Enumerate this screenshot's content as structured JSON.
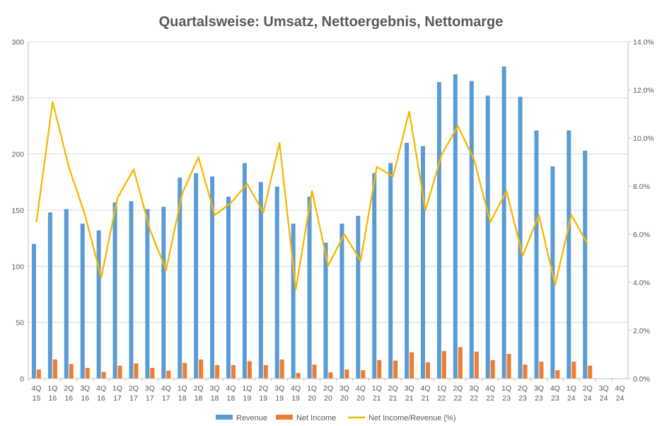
{
  "chart_data": {
    "type": "bar",
    "title": "Quartalsweise: Umsatz, Nettoergebnis, Nettomarge",
    "categories": [
      [
        "4Q",
        "15"
      ],
      [
        "1Q",
        "16"
      ],
      [
        "2Q",
        "16"
      ],
      [
        "3Q",
        "16"
      ],
      [
        "4Q",
        "16"
      ],
      [
        "1Q",
        "17"
      ],
      [
        "2Q",
        "17"
      ],
      [
        "3Q",
        "17"
      ],
      [
        "4Q",
        "17"
      ],
      [
        "1Q",
        "18"
      ],
      [
        "2Q",
        "18"
      ],
      [
        "3Q",
        "18"
      ],
      [
        "4Q",
        "18"
      ],
      [
        "1Q",
        "19"
      ],
      [
        "2Q",
        "19"
      ],
      [
        "3Q",
        "19"
      ],
      [
        "4Q",
        "19"
      ],
      [
        "1Q",
        "20"
      ],
      [
        "2Q",
        "20"
      ],
      [
        "3Q",
        "20"
      ],
      [
        "4Q",
        "20"
      ],
      [
        "1Q",
        "21"
      ],
      [
        "2Q",
        "21"
      ],
      [
        "3Q",
        "21"
      ],
      [
        "4Q",
        "21"
      ],
      [
        "1Q",
        "22"
      ],
      [
        "2Q",
        "22"
      ],
      [
        "3Q",
        "22"
      ],
      [
        "4Q",
        "22"
      ],
      [
        "1Q",
        "23"
      ],
      [
        "2Q",
        "23"
      ],
      [
        "3Q",
        "23"
      ],
      [
        "4Q",
        "23"
      ],
      [
        "1Q",
        "24"
      ],
      [
        "2Q",
        "24"
      ],
      [
        "3Q",
        "24"
      ],
      [
        "4Q",
        "24"
      ]
    ],
    "series": [
      {
        "name": "Revenue",
        "kind": "bar",
        "axis": "left",
        "color": "#5B9BD5",
        "values": [
          120,
          148,
          151,
          138,
          132,
          157,
          158,
          151,
          153,
          179,
          183,
          180,
          162,
          192,
          175,
          171,
          138,
          162,
          121,
          138,
          145,
          183,
          192,
          210,
          207,
          264,
          271,
          265,
          252,
          278,
          251,
          221,
          189,
          221,
          203,
          null,
          null
        ]
      },
      {
        "name": "Net Income",
        "kind": "bar",
        "axis": "left",
        "color": "#ED7D31",
        "values": [
          8,
          17,
          13,
          9.5,
          6,
          11.5,
          13.5,
          9.5,
          7,
          14,
          17,
          12,
          12,
          15.5,
          12,
          17,
          5,
          12.5,
          5.5,
          8,
          7.5,
          16.5,
          16,
          23.5,
          14.5,
          24.5,
          28,
          24,
          16.5,
          22,
          12.5,
          15,
          7.5,
          15,
          11.5,
          null,
          null
        ]
      },
      {
        "name": "Net Income/Revenue (%)",
        "kind": "line",
        "axis": "right",
        "color": "#F5B800",
        "values": [
          6.5,
          11.5,
          8.8,
          6.8,
          4.2,
          7.5,
          8.7,
          6.2,
          4.5,
          7.7,
          9.2,
          6.8,
          7.3,
          8.1,
          6.9,
          9.8,
          3.7,
          7.8,
          4.7,
          6.0,
          4.9,
          8.8,
          8.4,
          11.1,
          7.0,
          9.3,
          10.5,
          9.1,
          6.5,
          7.8,
          5.1,
          6.8,
          3.9,
          6.8,
          5.6,
          null,
          null
        ]
      }
    ],
    "y_left": {
      "min": 0,
      "max": 300,
      "ticks": [
        "0",
        "50",
        "100",
        "150",
        "200",
        "250",
        "300"
      ]
    },
    "y_right": {
      "min": 0,
      "max": 14,
      "ticks": [
        "0.0%",
        "2.0%",
        "4.0%",
        "6.0%",
        "8.0%",
        "10.0%",
        "12.0%",
        "14.0%"
      ]
    },
    "grid": true,
    "legend": "bottom",
    "colors": {
      "grid": "#D9D9D9",
      "text": "#595959",
      "axis": "#BFBFBF"
    }
  }
}
